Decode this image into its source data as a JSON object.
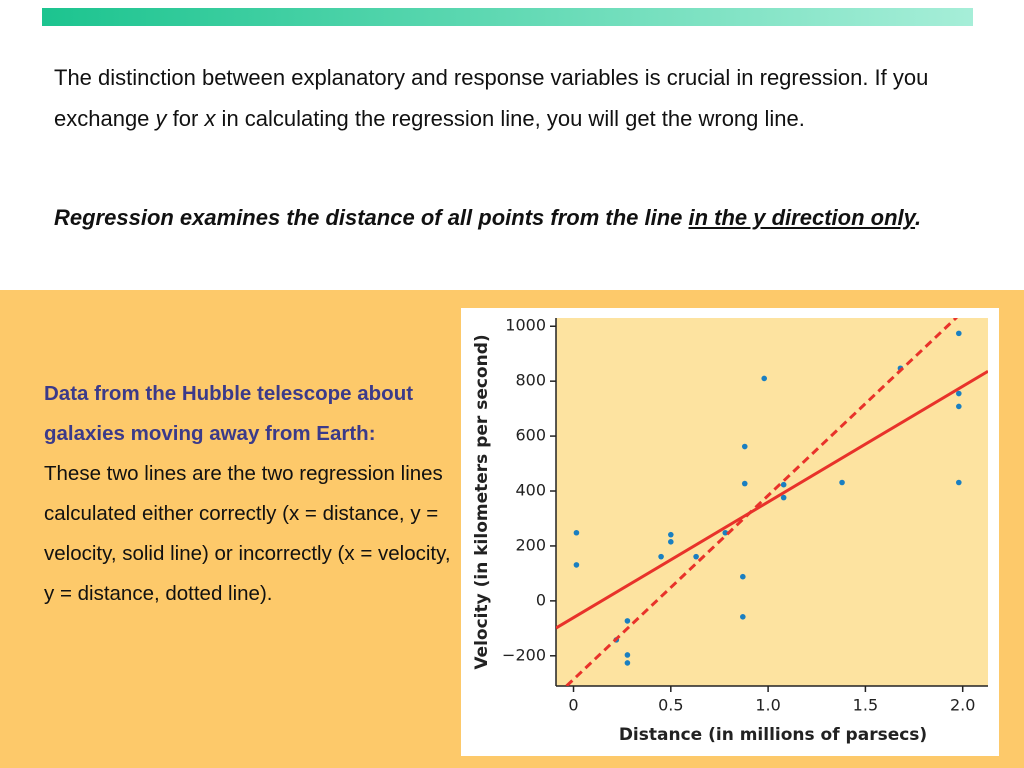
{
  "paragraphs": [
    [
      "The distinction between explanatory and response variables is crucial in regression. If you exchange ",
      "y",
      " for ",
      "x",
      " in calculating the regression line, you will get the wrong line."
    ],
    [
      "Regression examines the distance of all points from the line ",
      "in the y direction only",
      "."
    ]
  ],
  "caption": {
    "heading": "Data from the Hubble telescope about galaxies moving away from Earth:",
    "body": "These two lines are the two regression lines calculated either correctly (x = distance, y = velocity, solid line) or incorrectly (x = velocity, y = distance, dotted line)."
  },
  "chart_data": {
    "type": "scatter",
    "xlabel": "Distance (in millions of parsecs)",
    "ylabel": "Velocity (in kilometers per second)",
    "xlim": [
      -0.09,
      2.13
    ],
    "ylim": [
      -310,
      1030
    ],
    "xticks": [
      0,
      0.5,
      {
        "value": 1.0,
        "label": "1.0"
      },
      1.5,
      {
        "value": 2.0,
        "label": "2.0"
      }
    ],
    "yticks": [
      {
        "value": -200,
        "label": "−200"
      },
      0,
      200,
      400,
      600,
      800,
      1000
    ],
    "color": "#1a7fc1",
    "x": [
      0.015,
      0.015,
      0.277,
      0.277,
      0.277,
      0.22,
      0.45,
      0.5,
      0.5,
      0.63,
      0.78,
      0.88,
      0.88,
      0.87,
      0.87,
      0.98,
      1.08,
      1.08,
      1.38,
      1.68,
      1.98,
      1.98,
      1.98,
      1.98
    ],
    "values": [
      248,
      131,
      -73,
      -197,
      -226,
      -142,
      161,
      241,
      215,
      161,
      248,
      562,
      427,
      88,
      -58,
      810,
      423,
      376,
      431,
      847,
      974,
      755,
      708,
      431
    ],
    "lines": [
      {
        "style": "solid",
        "color": "#e8322a",
        "x": [
          -0.09,
          2.13
        ],
        "y": [
          -99,
          836
        ]
      },
      {
        "style": "dashed",
        "color": "#e8322a",
        "x": [
          -0.036,
          1.97
        ],
        "y": [
          -310,
          1033
        ]
      }
    ]
  }
}
